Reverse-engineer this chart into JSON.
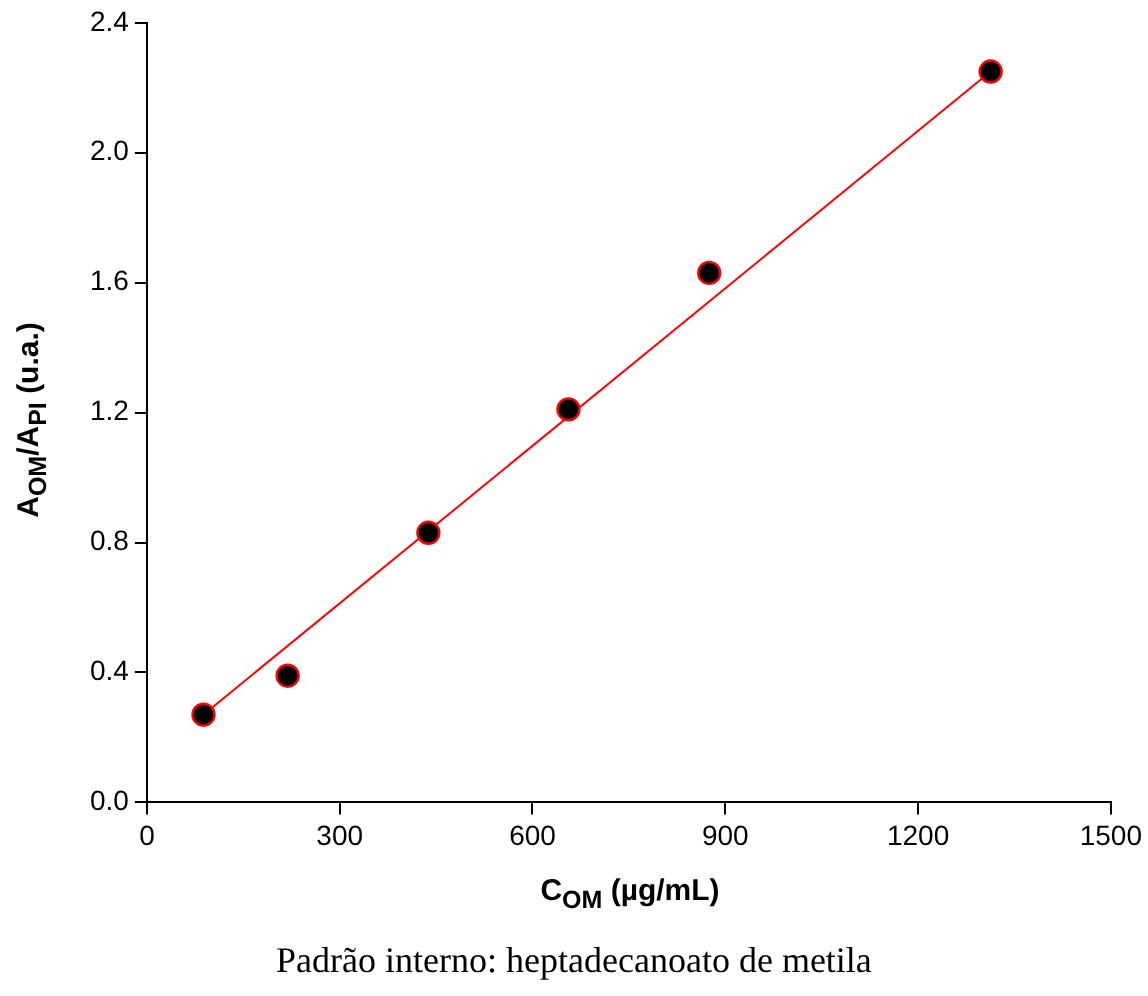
{
  "chart_data": {
    "type": "scatter",
    "xlabel": "C$_{OM}$ (µg/mL)",
    "ylabel": "A$_{OM}$/A$_{PI}$ (u.a.)",
    "x": [
      88,
      219,
      438,
      656,
      875,
      1313
    ],
    "series": [
      {
        "color": "#000000",
        "marker": "circle",
        "values": [
          0.27,
          0.39,
          0.83,
          1.21,
          1.63,
          2.25
        ]
      },
      {
        "type": "line",
        "color": "#ff0000",
        "marker": "none",
        "x": [
          88,
          1313
        ],
        "values": [
          0.27,
          2.25
        ]
      }
    ],
    "xlim": [
      0,
      1500
    ],
    "xticks": [
      0,
      300,
      600,
      900,
      1200,
      1500
    ],
    "ylim": [
      0,
      2.4
    ],
    "yticks": [
      {
        "value": 0,
        "label": "0.0"
      },
      0.4,
      0.8,
      1.2,
      1.6,
      {
        "value": 2,
        "label": "2.0"
      },
      2.4
    ],
    "grid": false,
    "legend": false,
    "annotations": [
      "Padrão interno: heptadecanoato de metila"
    ]
  }
}
